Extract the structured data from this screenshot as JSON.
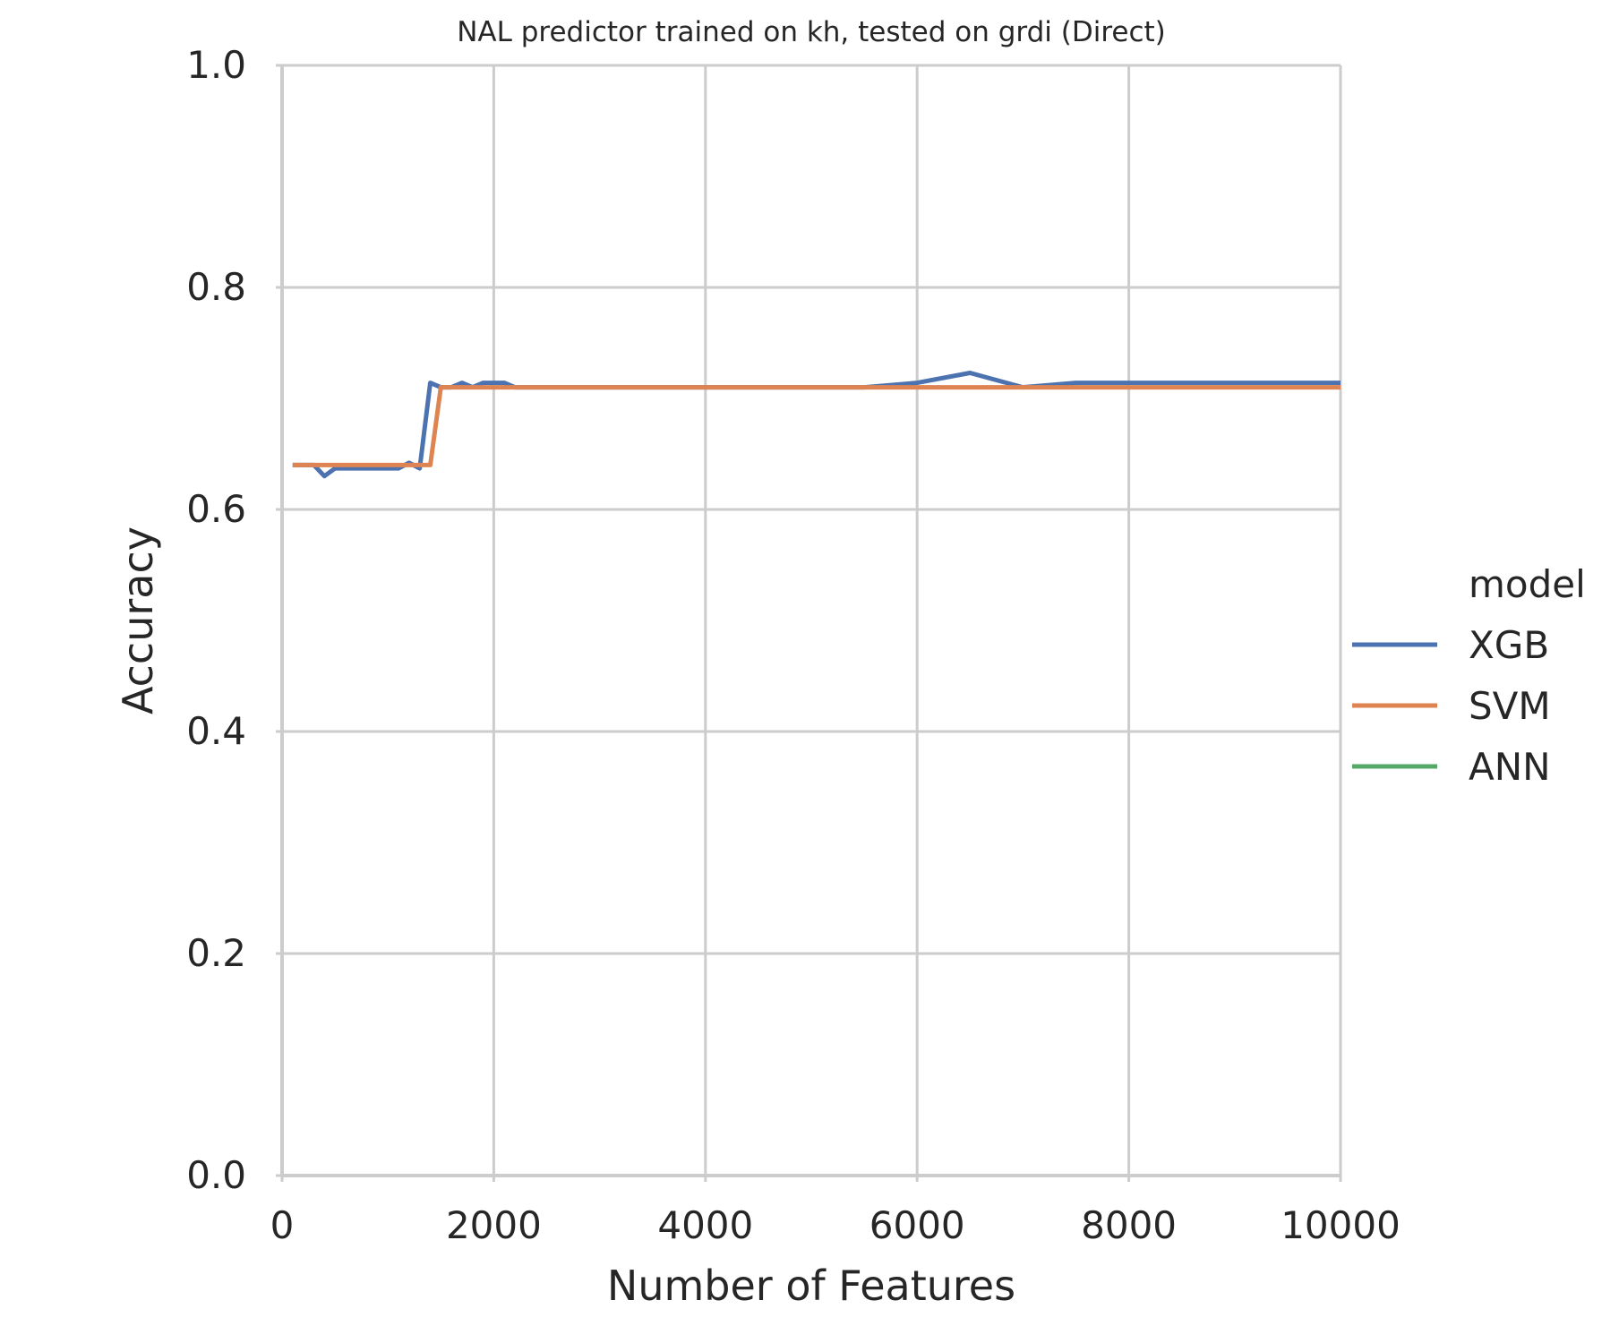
{
  "chart_data": {
    "type": "line",
    "title": "NAL predictor trained on kh, tested on grdi (Direct)",
    "xlabel": "Number of Features",
    "ylabel": "Accuracy",
    "xlim": [
      0,
      10000
    ],
    "ylim": [
      0.0,
      1.0
    ],
    "x_ticks": [
      0,
      2000,
      4000,
      6000,
      8000,
      10000
    ],
    "x_tick_labels": [
      "0",
      "2000",
      "4000",
      "6000",
      "8000",
      "10000"
    ],
    "y_ticks": [
      0.0,
      0.2,
      0.4,
      0.6,
      0.8,
      1.0
    ],
    "y_tick_labels": [
      "0.0",
      "0.2",
      "0.4",
      "0.6",
      "0.8",
      "1.0"
    ],
    "grid": true,
    "legend_title": "model",
    "legend_position": "right",
    "series": [
      {
        "name": "XGB",
        "color": "#4c72b0",
        "x": [
          100,
          300,
          400,
          500,
          600,
          700,
          800,
          900,
          1000,
          1100,
          1200,
          1300,
          1400,
          1500,
          1600,
          1700,
          1800,
          1900,
          2000,
          2100,
          2200,
          2500,
          3000,
          3500,
          4000,
          4500,
          5000,
          5500,
          6000,
          6500,
          7000,
          7500,
          8000,
          8500,
          9000,
          9500,
          10000
        ],
        "y": [
          0.64,
          0.64,
          0.63,
          0.637,
          0.637,
          0.637,
          0.637,
          0.637,
          0.637,
          0.637,
          0.642,
          0.637,
          0.714,
          0.71,
          0.71,
          0.714,
          0.71,
          0.714,
          0.714,
          0.714,
          0.71,
          0.71,
          0.71,
          0.71,
          0.71,
          0.71,
          0.71,
          0.71,
          0.714,
          0.723,
          0.71,
          0.714,
          0.714,
          0.714,
          0.714,
          0.714,
          0.714
        ]
      },
      {
        "name": "SVM",
        "color": "#dd8452",
        "x": [
          100,
          500,
          1000,
          1400,
          1500,
          2000,
          3000,
          4000,
          5000,
          6000,
          7000,
          8000,
          9000,
          10000
        ],
        "y": [
          0.64,
          0.64,
          0.64,
          0.64,
          0.71,
          0.71,
          0.71,
          0.71,
          0.71,
          0.71,
          0.71,
          0.71,
          0.71,
          0.71
        ]
      },
      {
        "name": "ANN",
        "color": "#55a868",
        "x": [],
        "y": []
      }
    ]
  }
}
